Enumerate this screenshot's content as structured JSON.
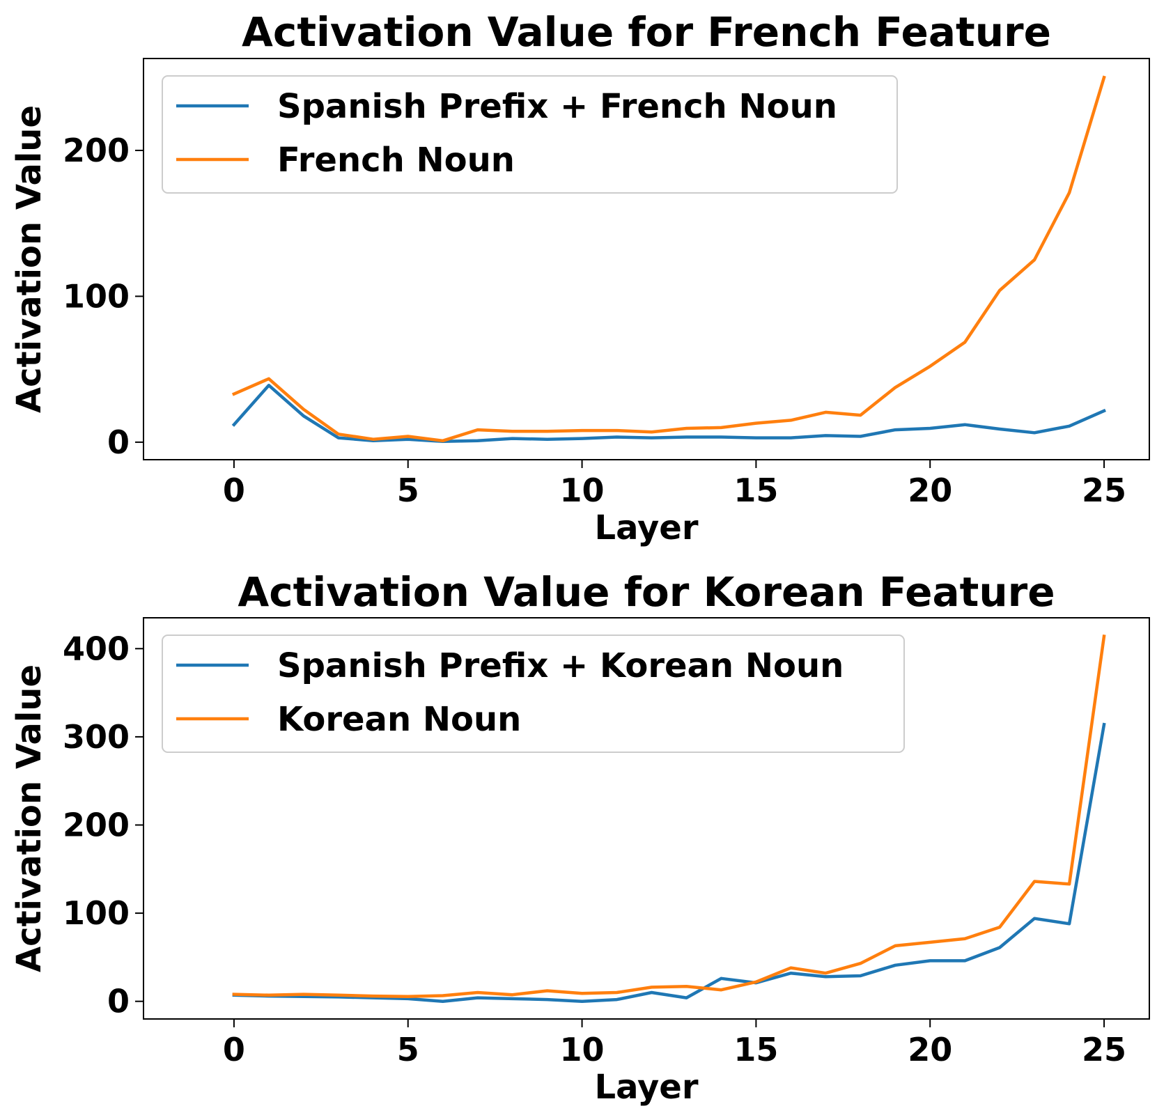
{
  "chart_data": [
    {
      "type": "line",
      "title": "Activation Value for French Feature",
      "xlabel": "Layer",
      "ylabel": "Activation Value",
      "xlim": [
        -2.6,
        26.3
      ],
      "ylim": [
        -12,
        263
      ],
      "xticks": [
        0,
        5,
        10,
        15,
        20,
        25
      ],
      "yticks": [
        0,
        100,
        200
      ],
      "grid": false,
      "legend_position": "top-left",
      "x": [
        0,
        1,
        2,
        3,
        4,
        5,
        6,
        7,
        8,
        9,
        10,
        11,
        12,
        13,
        14,
        15,
        16,
        17,
        18,
        19,
        20,
        21,
        22,
        23,
        24,
        25
      ],
      "series": [
        {
          "name": "Spanish Prefix + French Noun",
          "color": "#1f77b4",
          "values": [
            12,
            39,
            18,
            3,
            1,
            2,
            0.5,
            1,
            2.5,
            2,
            2.5,
            3.5,
            3,
            3.5,
            3.5,
            3,
            3,
            4.5,
            4,
            8.5,
            9.5,
            12,
            9,
            6.5,
            11,
            21.5
          ]
        },
        {
          "name": "French Noun",
          "color": "#ff7f0e",
          "values": [
            33,
            43.5,
            22.5,
            5.5,
            2,
            4,
            1,
            8.5,
            7.5,
            7.5,
            8,
            8,
            7,
            9.5,
            10,
            13,
            15,
            20.5,
            18.5,
            37.5,
            52,
            68.5,
            104,
            125,
            171,
            250
          ]
        }
      ]
    },
    {
      "type": "line",
      "title": "Activation Value for Korean Feature",
      "xlabel": "Layer",
      "ylabel": "Activation Value",
      "xlim": [
        -2.6,
        26.3
      ],
      "ylim": [
        -20,
        435
      ],
      "xticks": [
        0,
        5,
        10,
        15,
        20,
        25
      ],
      "yticks": [
        0,
        100,
        200,
        300,
        400
      ],
      "grid": false,
      "legend_position": "top-left",
      "x": [
        0,
        1,
        2,
        3,
        4,
        5,
        6,
        7,
        8,
        9,
        10,
        11,
        12,
        13,
        14,
        15,
        16,
        17,
        18,
        19,
        20,
        21,
        22,
        23,
        24,
        25
      ],
      "series": [
        {
          "name": "Spanish Prefix + Korean Noun",
          "color": "#1f77b4",
          "values": [
            7,
            6,
            5.5,
            5,
            4,
            3,
            0,
            4,
            3,
            2,
            0,
            2,
            10,
            4,
            26,
            21,
            32,
            28,
            29,
            41,
            46,
            46,
            61,
            94,
            88,
            314
          ]
        },
        {
          "name": "Korean Noun",
          "color": "#ff7f0e",
          "values": [
            8,
            7,
            8,
            7,
            6,
            5.5,
            6.5,
            10,
            7.5,
            12,
            9,
            10,
            16,
            17,
            13,
            22,
            38,
            32,
            43,
            63,
            67,
            71,
            84,
            136,
            133,
            414
          ]
        }
      ]
    }
  ]
}
